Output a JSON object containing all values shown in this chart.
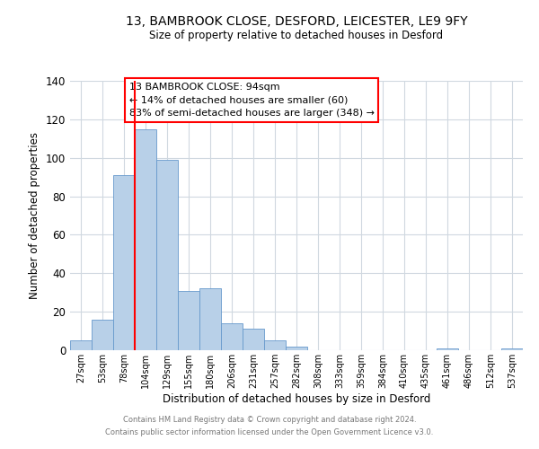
{
  "title1": "13, BAMBROOK CLOSE, DESFORD, LEICESTER, LE9 9FY",
  "title2": "Size of property relative to detached houses in Desford",
  "xlabel": "Distribution of detached houses by size in Desford",
  "ylabel": "Number of detached properties",
  "bar_labels": [
    "27sqm",
    "53sqm",
    "78sqm",
    "104sqm",
    "129sqm",
    "155sqm",
    "180sqm",
    "206sqm",
    "231sqm",
    "257sqm",
    "282sqm",
    "308sqm",
    "333sqm",
    "359sqm",
    "384sqm",
    "410sqm",
    "435sqm",
    "461sqm",
    "486sqm",
    "512sqm",
    "537sqm"
  ],
  "bar_values": [
    5,
    16,
    91,
    115,
    99,
    31,
    32,
    14,
    11,
    5,
    2,
    0,
    0,
    0,
    0,
    0,
    0,
    1,
    0,
    0,
    1
  ],
  "bar_color": "#b8d0e8",
  "bar_edge_color": "#6699cc",
  "redline_bin": 3,
  "ylim": [
    0,
    140
  ],
  "yticks": [
    0,
    20,
    40,
    60,
    80,
    100,
    120,
    140
  ],
  "annotation_title": "13 BAMBROOK CLOSE: 94sqm",
  "annotation_line1": "← 14% of detached houses are smaller (60)",
  "annotation_line2": "83% of semi-detached houses are larger (348) →",
  "footer1": "Contains HM Land Registry data © Crown copyright and database right 2024.",
  "footer2": "Contains public sector information licensed under the Open Government Licence v3.0.",
  "background_color": "#ffffff",
  "grid_color": "#d0d8e0"
}
